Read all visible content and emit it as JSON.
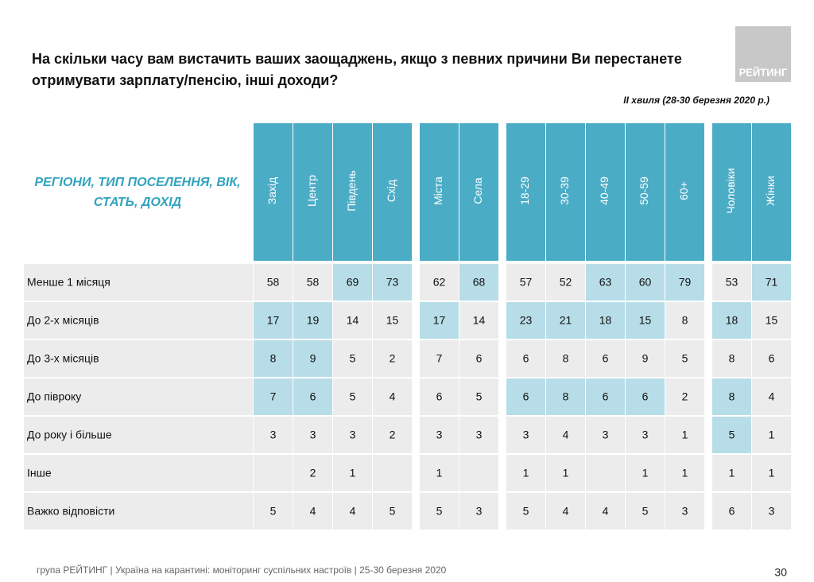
{
  "title_lines": [
    "На скільки часу вам вистачить ваших заощаджень, якщо з певних причини Ви перестанете",
    "отримувати зарплату/пенсію, інші доходи?"
  ],
  "subtitle": "ІІ хвиля (28-30 березня 2020 р.)",
  "logo": "РЕЙТИНГ",
  "table": {
    "heading_lines": [
      "РЕГІОНИ, ТИП ПОСЕЛЕННЯ, ВІК,",
      "СТАТЬ, ДОХІД"
    ],
    "column_groups": [
      [
        "Захід",
        "Центр",
        "Південь",
        "Схід"
      ],
      [
        "Міста",
        "Села"
      ],
      [
        "18-29",
        "30-39",
        "40-49",
        "50-59",
        "60+"
      ],
      [
        "Чоловіки",
        "Жінки"
      ]
    ],
    "rows": [
      {
        "label": "Менше 1 місяця",
        "values": [
          58,
          58,
          69,
          73,
          62,
          68,
          57,
          52,
          63,
          60,
          79,
          53,
          71
        ],
        "highlight": [
          2,
          3,
          5,
          8,
          9,
          10,
          12
        ]
      },
      {
        "label": "До 2-х місяців",
        "values": [
          17,
          19,
          14,
          15,
          17,
          14,
          23,
          21,
          18,
          15,
          8,
          18,
          15
        ],
        "highlight": [
          0,
          1,
          4,
          6,
          7,
          8,
          9,
          11
        ]
      },
      {
        "label": "До 3-х місяців",
        "values": [
          8,
          9,
          5,
          2,
          7,
          6,
          6,
          8,
          6,
          9,
          5,
          8,
          6
        ],
        "highlight": [
          0,
          1
        ]
      },
      {
        "label": "До півроку",
        "values": [
          7,
          6,
          5,
          4,
          6,
          5,
          6,
          8,
          6,
          6,
          2,
          8,
          4
        ],
        "highlight": [
          0,
          1,
          6,
          7,
          8,
          9,
          11
        ]
      },
      {
        "label": "До року і більше",
        "values": [
          3,
          3,
          3,
          2,
          3,
          3,
          3,
          4,
          3,
          3,
          1,
          5,
          1
        ],
        "highlight": [
          11
        ]
      },
      {
        "label": "Інше",
        "values": [
          null,
          2,
          1,
          null,
          1,
          null,
          1,
          1,
          null,
          1,
          1,
          1,
          1
        ],
        "highlight": []
      },
      {
        "label": "Важко відповісти",
        "values": [
          5,
          4,
          4,
          5,
          5,
          3,
          5,
          4,
          4,
          5,
          3,
          6,
          3
        ],
        "highlight": []
      }
    ]
  },
  "footer": "група РЕЙТИНГ  |  Україна на карантині: моніторинг суспільних настроїв  |  25-30 березня 2020",
  "page_number": "30"
}
